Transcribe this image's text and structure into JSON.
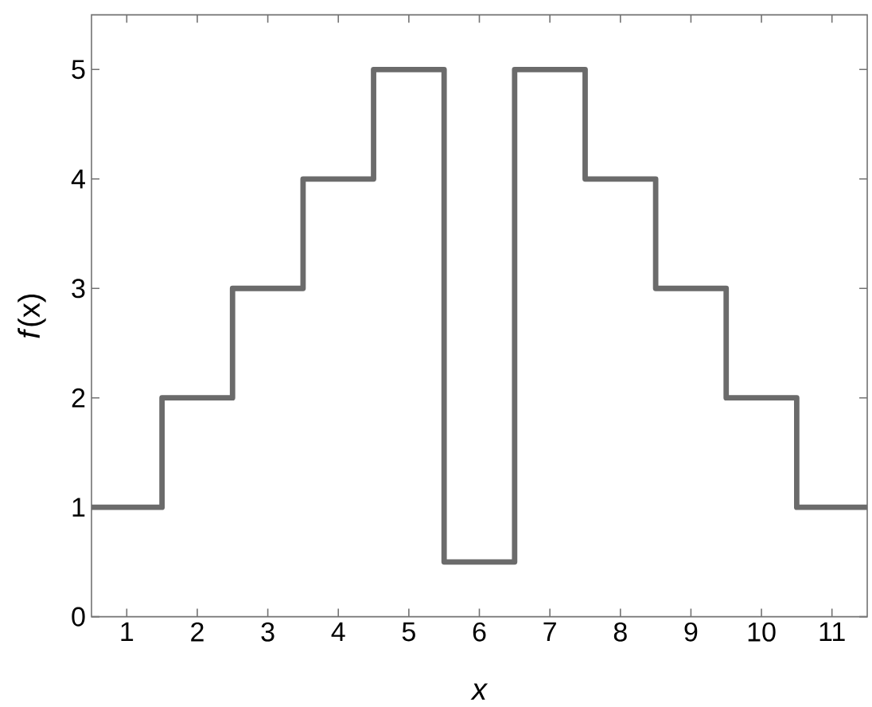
{
  "chart_data": {
    "type": "step",
    "xlabel": "x",
    "ylabel": "*f*(x)",
    "x": [
      0.5,
      1.5,
      2.5,
      3.5,
      4.5,
      5.5,
      6.5,
      7.5,
      8.5,
      9.5,
      10.5,
      11.5
    ],
    "series": [
      {
        "color": "#6b6b6b",
        "values": [
          1,
          2,
          3,
          4,
          5,
          0.5,
          5,
          4,
          3,
          2,
          1,
          1
        ]
      }
    ],
    "xlim": [
      0.5,
      11.5
    ],
    "ylim": [
      0,
      5.5
    ],
    "xticks": [
      1,
      2,
      3,
      4,
      5,
      6,
      7,
      8,
      9,
      10,
      11
    ],
    "yticks": [
      0,
      1,
      2,
      3,
      4,
      5
    ],
    "marker": "none",
    "line_style": "solid"
  }
}
